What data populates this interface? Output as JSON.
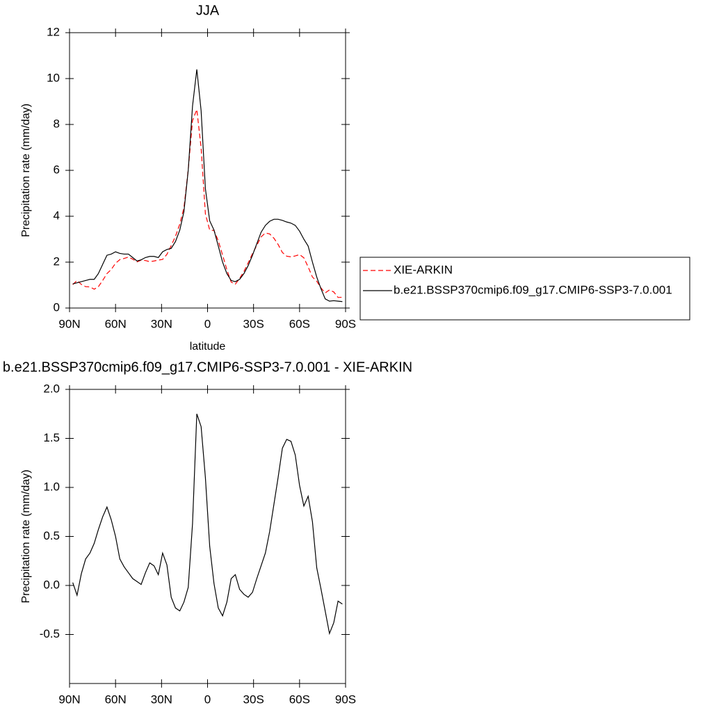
{
  "chart_data": [
    {
      "type": "line",
      "title": "JJA",
      "xlabel": "latitude",
      "ylabel": "Precipitation rate (mm/day)",
      "x": [
        87.9,
        85.1,
        82.3,
        79.5,
        76.7,
        73.9,
        71.2,
        68.4,
        65.6,
        62.8,
        60.0,
        57.2,
        54.4,
        51.6,
        48.8,
        46.0,
        43.3,
        40.5,
        37.7,
        34.9,
        32.1,
        29.3,
        26.5,
        23.7,
        20.9,
        18.1,
        15.4,
        12.6,
        9.8,
        7.0,
        4.2,
        1.4,
        -1.4,
        -4.2,
        -7.0,
        -9.8,
        -12.6,
        -15.4,
        -18.1,
        -20.9,
        -23.7,
        -26.5,
        -29.3,
        -32.1,
        -34.9,
        -37.7,
        -40.5,
        -43.3,
        -46.0,
        -48.8,
        -51.6,
        -54.4,
        -57.2,
        -60.0,
        -62.8,
        -65.6,
        -68.4,
        -71.2,
        -73.9,
        -76.7,
        -79.5,
        -82.3,
        -85.1,
        -87.9
      ],
      "series": [
        {
          "name": "XIE-ARKIN",
          "color": "#ff0000",
          "line_style": "dashed",
          "values": [
            1.02,
            1.2,
            1.03,
            0.93,
            0.92,
            0.82,
            0.93,
            1.2,
            1.5,
            1.68,
            1.95,
            2.11,
            2.16,
            2.22,
            2.13,
            2.01,
            2.09,
            2.07,
            2.02,
            2.05,
            2.09,
            2.12,
            2.34,
            2.72,
            3.13,
            3.66,
            4.37,
            6.02,
            8.17,
            8.65,
            6.98,
            4.1,
            3.4,
            3.38,
            2.93,
            2.31,
            1.67,
            1.13,
            1.04,
            1.29,
            1.59,
            1.97,
            2.37,
            2.73,
            3.1,
            3.27,
            3.23,
            3.04,
            2.77,
            2.42,
            2.26,
            2.23,
            2.27,
            2.33,
            2.19,
            1.79,
            1.35,
            1.17,
            0.88,
            0.66,
            0.79,
            0.7,
            0.46,
            0.47
          ]
        },
        {
          "name": "b.e21.BSSP370cmip6.f09_g17.CMIP6-SSP3-7.0.001",
          "color": "#000000",
          "line_style": "solid",
          "values": [
            1.05,
            1.1,
            1.15,
            1.2,
            1.25,
            1.25,
            1.5,
            1.9,
            2.3,
            2.35,
            2.45,
            2.38,
            2.35,
            2.35,
            2.2,
            2.05,
            2.1,
            2.2,
            2.25,
            2.25,
            2.2,
            2.45,
            2.55,
            2.6,
            2.9,
            3.4,
            4.2,
            6.0,
            8.8,
            10.4,
            8.6,
            5.2,
            3.8,
            3.4,
            2.7,
            2.0,
            1.5,
            1.2,
            1.15,
            1.25,
            1.5,
            1.85,
            2.3,
            2.8,
            3.3,
            3.6,
            3.78,
            3.87,
            3.87,
            3.82,
            3.75,
            3.7,
            3.6,
            3.35,
            3.0,
            2.7,
            2.0,
            1.35,
            0.85,
            0.4,
            0.3,
            0.32,
            0.3,
            0.28
          ]
        }
      ],
      "xlim": [
        90,
        -90
      ],
      "xticks": [
        {
          "value": 90,
          "label": "90N"
        },
        {
          "value": 60,
          "label": "60N"
        },
        {
          "value": 30,
          "label": "30N"
        },
        0,
        {
          "value": -30,
          "label": "30S"
        },
        {
          "value": -60,
          "label": "60S"
        },
        {
          "value": -90,
          "label": "90S"
        }
      ],
      "ylim": [
        0,
        12
      ],
      "yticks": [
        0,
        2,
        4,
        6,
        8,
        10,
        12
      ],
      "legend": "right"
    },
    {
      "type": "line",
      "title": "b.e21.BSSP370cmip6.f09_g17.CMIP6-SSP3-7.0.001 - XIE-ARKIN",
      "xlabel": "latitude",
      "ylabel": "Precipitation rate (mm/day)",
      "x": [
        87.9,
        85.1,
        82.3,
        79.5,
        76.7,
        73.9,
        71.2,
        68.4,
        65.6,
        62.8,
        60.0,
        57.2,
        54.4,
        51.6,
        48.8,
        46.0,
        43.3,
        40.5,
        37.7,
        34.9,
        32.1,
        29.3,
        26.5,
        23.7,
        20.9,
        18.1,
        15.4,
        12.6,
        9.8,
        7.0,
        4.2,
        1.4,
        -1.4,
        -4.2,
        -7.0,
        -9.8,
        -12.6,
        -15.4,
        -18.1,
        -20.9,
        -23.7,
        -26.5,
        -29.3,
        -32.1,
        -34.9,
        -37.7,
        -40.5,
        -43.3,
        -46.0,
        -48.8,
        -51.6,
        -54.4,
        -57.2,
        -60.0,
        -62.8,
        -65.6,
        -68.4,
        -71.2,
        -73.9,
        -76.7,
        -79.5,
        -82.3,
        -85.1,
        -87.9
      ],
      "series": [
        {
          "color": "#000000",
          "line_style": "solid",
          "values": [
            0.03,
            -0.1,
            0.12,
            0.27,
            0.33,
            0.43,
            0.57,
            0.7,
            0.8,
            0.67,
            0.5,
            0.27,
            0.19,
            0.13,
            0.07,
            0.04,
            0.01,
            0.13,
            0.23,
            0.2,
            0.11,
            0.33,
            0.21,
            -0.12,
            -0.23,
            -0.26,
            -0.17,
            -0.02,
            0.63,
            1.75,
            1.62,
            1.1,
            0.4,
            0.02,
            -0.23,
            -0.31,
            -0.17,
            0.07,
            0.11,
            -0.04,
            -0.09,
            -0.12,
            -0.07,
            0.07,
            0.2,
            0.33,
            0.55,
            0.83,
            1.1,
            1.4,
            1.49,
            1.47,
            1.33,
            1.02,
            0.81,
            0.91,
            0.65,
            0.18,
            -0.03,
            -0.26,
            -0.49,
            -0.38,
            -0.16,
            -0.19
          ]
        }
      ],
      "xlim": [
        90,
        -90
      ],
      "xticks": [
        {
          "value": 90,
          "label": "90N"
        },
        {
          "value": 60,
          "label": "60N"
        },
        {
          "value": 30,
          "label": "30N"
        },
        0,
        {
          "value": -30,
          "label": "30S"
        },
        {
          "value": -60,
          "label": "60S"
        },
        {
          "value": -90,
          "label": "90S"
        }
      ],
      "ylim": [
        -1,
        2
      ],
      "yticks": [
        -0.5,
        {
          "value": 0,
          "label": "0.0"
        },
        0.5,
        {
          "value": 1,
          "label": "1.0"
        },
        1.5,
        {
          "value": 2,
          "label": "2.0"
        }
      ]
    }
  ]
}
